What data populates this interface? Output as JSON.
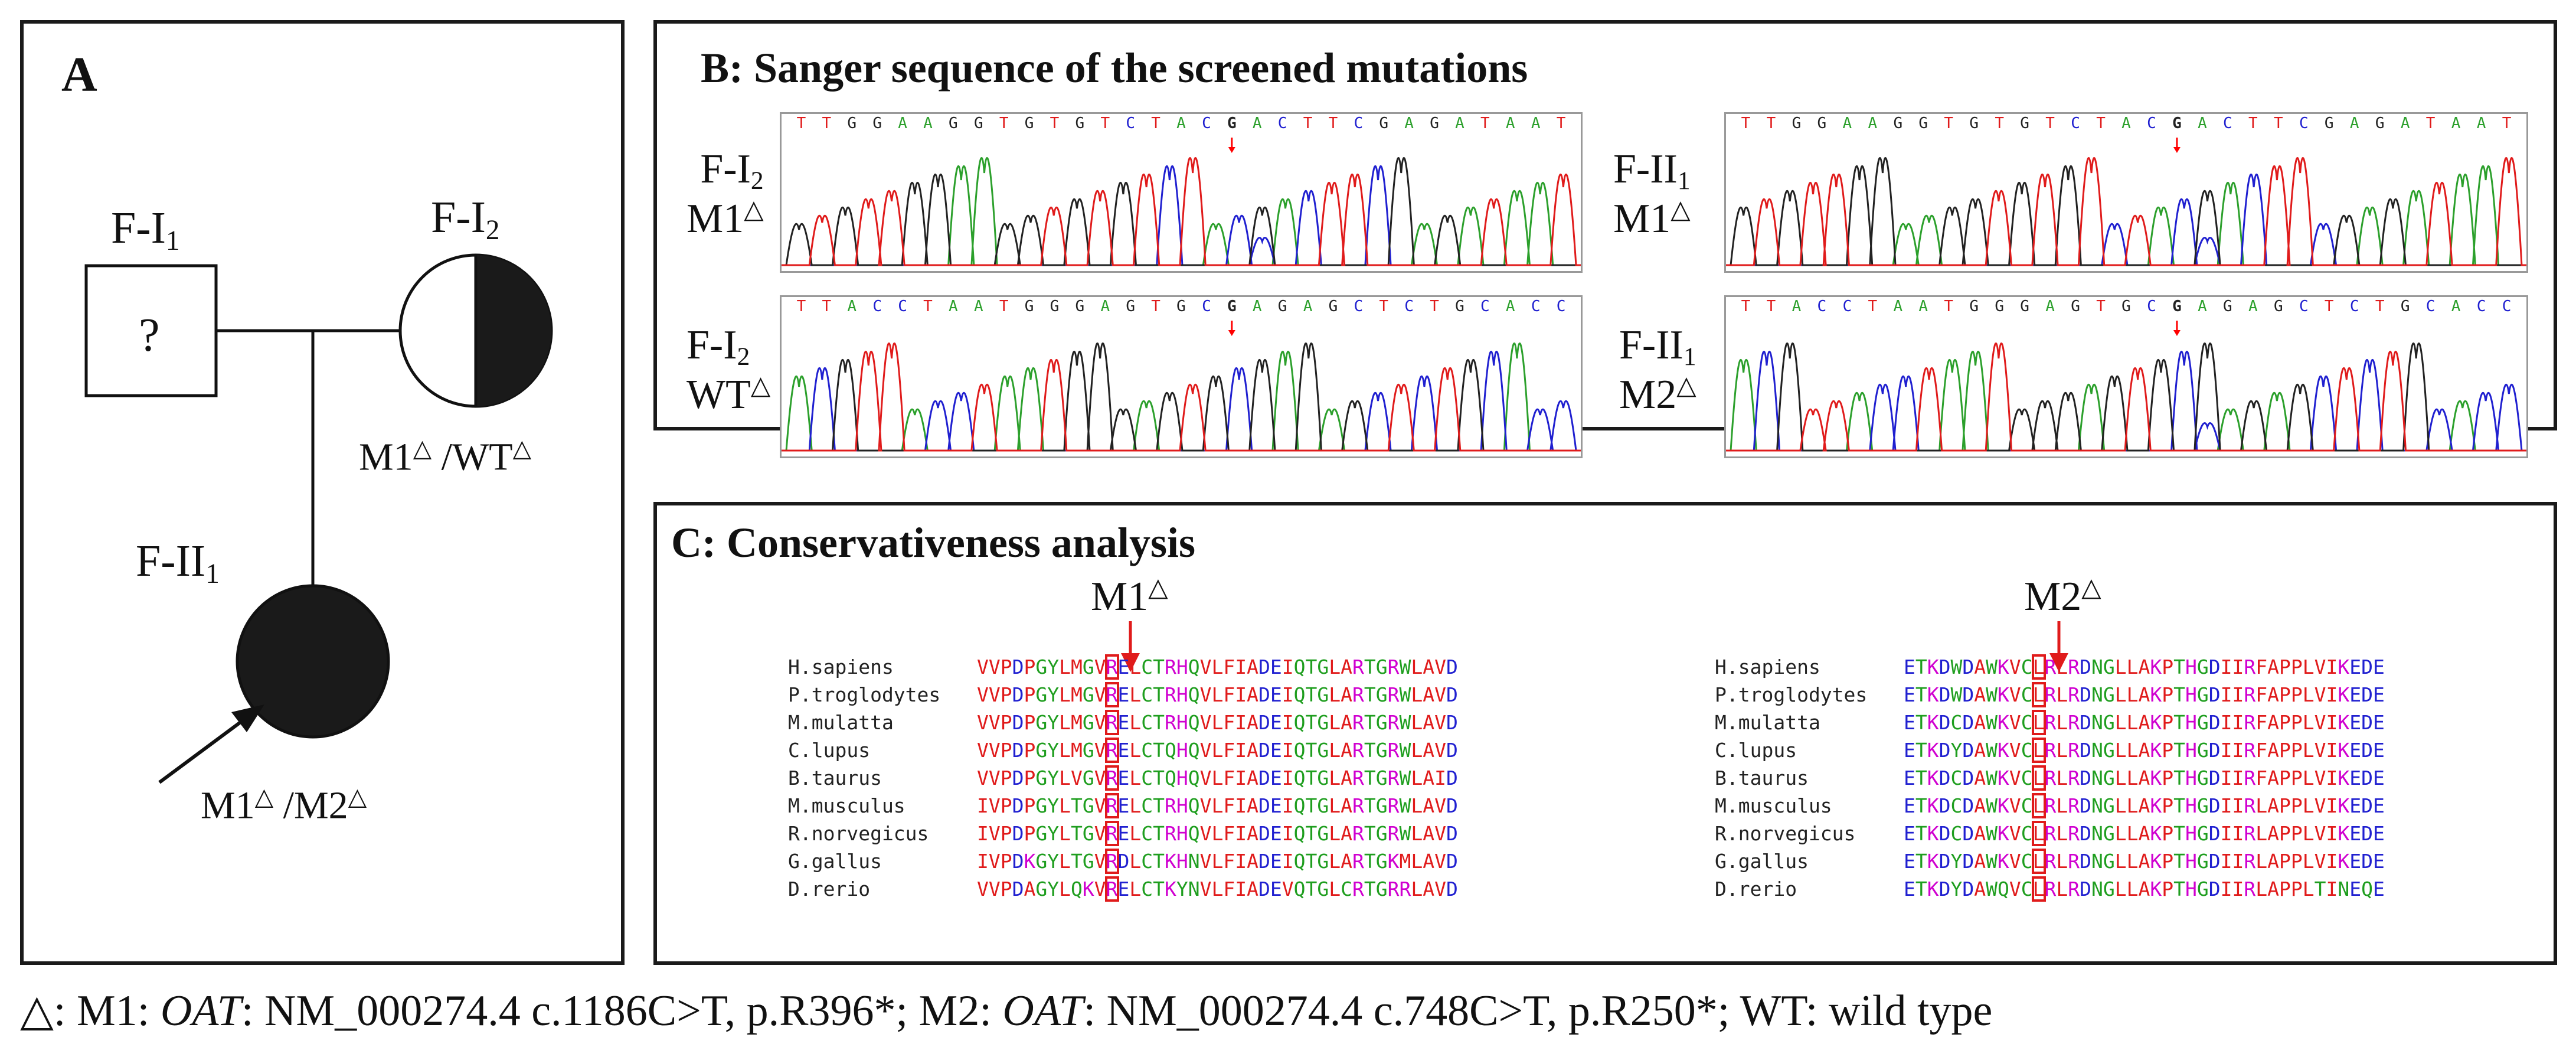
{
  "colors": {
    "A": "#2ca02c",
    "C": "#2020d0",
    "G": "#222222",
    "T": "#e01b1b",
    "marker": "#ff0000",
    "box": "#e01b1b"
  },
  "panel_a": {
    "letter": "A",
    "father": {
      "id": "F-I",
      "sub": "1",
      "symbol": "?"
    },
    "mother": {
      "id": "F-I",
      "sub": "2",
      "genotype_a": "M1",
      "sep": " /",
      "genotype_b": "WT",
      "delta": "△"
    },
    "child": {
      "id": "F-II",
      "sub": "1",
      "genotype_a": "M1",
      "sep": " /",
      "genotype_b": "M2",
      "delta": "△"
    }
  },
  "panel_b": {
    "title": "B: Sanger sequence of the screened mutations",
    "traces": [
      {
        "sample": "F-I",
        "sample_sub": "2",
        "variant": "M1",
        "seq": "TTGGAAGGTGTGTCTACGACTTCGAGATAAT",
        "mark_index": 17,
        "peaks": "GTGTTGGAAGGTGTGTCTACGACTTCGAGATAAT",
        "het": true
      },
      {
        "sample": "F-II",
        "sample_sub": "1",
        "variant": "M1",
        "seq": "TTGGAAGGTGTGTCTACGACTTCGAGATAAT",
        "mark_index": 17,
        "peaks": "GTGTTGGAAGGTGTGTCTACGACTTCGAGATAAT",
        "het": true
      },
      {
        "sample": "F-I",
        "sample_sub": "2",
        "variant": "WT",
        "seq": "TTACCTAATGGGAGTGCGAGAGCTCTGCACC",
        "mark_index": 17,
        "peaks": "ACGTTACCTAATGGGAGTGCGAGAGCTCTGCACC",
        "het": false
      },
      {
        "sample": "F-II",
        "sample_sub": "1",
        "variant": "M2",
        "seq": "TTACCTAATGGGAGTGCGAGAGCTCTGCACC",
        "mark_index": 17,
        "peaks": "ACGTTACCTAATGGGAGTGCGAGAGCTCTGCACC",
        "het": true
      }
    ],
    "delta": "△"
  },
  "panel_c": {
    "title": "C: Conservativeness analysis",
    "delta": "△",
    "alignments": [
      {
        "mutation": "M1",
        "mark_col": 11,
        "rows": [
          {
            "species": "H.sapiens",
            "seq": "VVPDPGYLMGVRELCTRHQVLFIADEIQTGLARTGRWLAVD"
          },
          {
            "species": "P.troglodytes",
            "seq": "VVPDPGYLMGVRELCTRHQVLFIADEIQTGLARTGRWLAVD"
          },
          {
            "species": "M.mulatta",
            "seq": "VVPDPGYLMGVRELCTRHQVLFIADEIQTGLARTGRWLAVD"
          },
          {
            "species": "C.lupus",
            "seq": "VVPDPGYLMGVRELCTQHQVLFIADEIQTGLARTGRWLAVD"
          },
          {
            "species": "B.taurus",
            "seq": "VVPDPGYLVGVRELCTQHQVLFIADEIQTGLARTGRWLAID"
          },
          {
            "species": "M.musculus",
            "seq": "IVPDPGYLTGVRELCTRHQVLFIADEIQTGLARTGRWLAVD"
          },
          {
            "species": "R.norvegicus",
            "seq": "IVPDPGYLTGVRELCTRHQVLFIADEIQTGLARTGRWLAVD"
          },
          {
            "species": "G.gallus",
            "seq": "IVPDKGYLTGVRDLCTKHNVLFIADEIQTGLARTGKMLAVD"
          },
          {
            "species": "D.rerio",
            "seq": "VVPDAGYLQKVRELCTKYNVLFIADEVQTGLCRTGRRLAVD"
          }
        ]
      },
      {
        "mutation": "M2",
        "mark_col": 11,
        "rows": [
          {
            "species": "H.sapiens",
            "seq": "ETKDWDAWKVCLRLRDNGLLAKPTHGDIIRFAPPLVIKEDE"
          },
          {
            "species": "P.troglodytes",
            "seq": "ETKDWDAWKVCLRLRDNGLLAKPTHGDIIRFAPPLVIKEDE"
          },
          {
            "species": "M.mulatta",
            "seq": "ETKDCDAWKVCLRLRDNGLLAKPTHGDIIRFAPPLVIKEDE"
          },
          {
            "species": "C.lupus",
            "seq": "ETKDYDAWKVCLRLRDNGLLAKPTHGDIIRFAPPLVIKEDE"
          },
          {
            "species": "B.taurus",
            "seq": "ETKDCDAWKVCLRLRDNGLLAKPTHGDIIRFAPPLVIKEDE"
          },
          {
            "species": "M.musculus",
            "seq": "ETKDCDAWKVCLRLRDNGLLAKPTHGDIIRLAPPLVIKEDE"
          },
          {
            "species": "R.norvegicus",
            "seq": "ETKDCDAWKVCLRLRDNGLLAKPTHGDIIRLAPPLVIKEDE"
          },
          {
            "species": "G.gallus",
            "seq": "ETKDYDAWKVCLRLRDNGLLAKPTHGDIIRLAPPLVIKEDE"
          },
          {
            "species": "D.rerio",
            "seq": "ETKDYDAWQVCLRLRDNGLLAKPTHGDIIRLAPPLTINEQE"
          }
        ]
      }
    ]
  },
  "footnote": {
    "delta": "△",
    "m1_prefix": ": M1: ",
    "gene": "OAT",
    "m1_rest": ": NM_000274.4 c.1186C>T, p.R396*;  M2: ",
    "m2_rest": ": NM_000274.4 c.748C>T, p.R250*;  WT: wild type"
  }
}
